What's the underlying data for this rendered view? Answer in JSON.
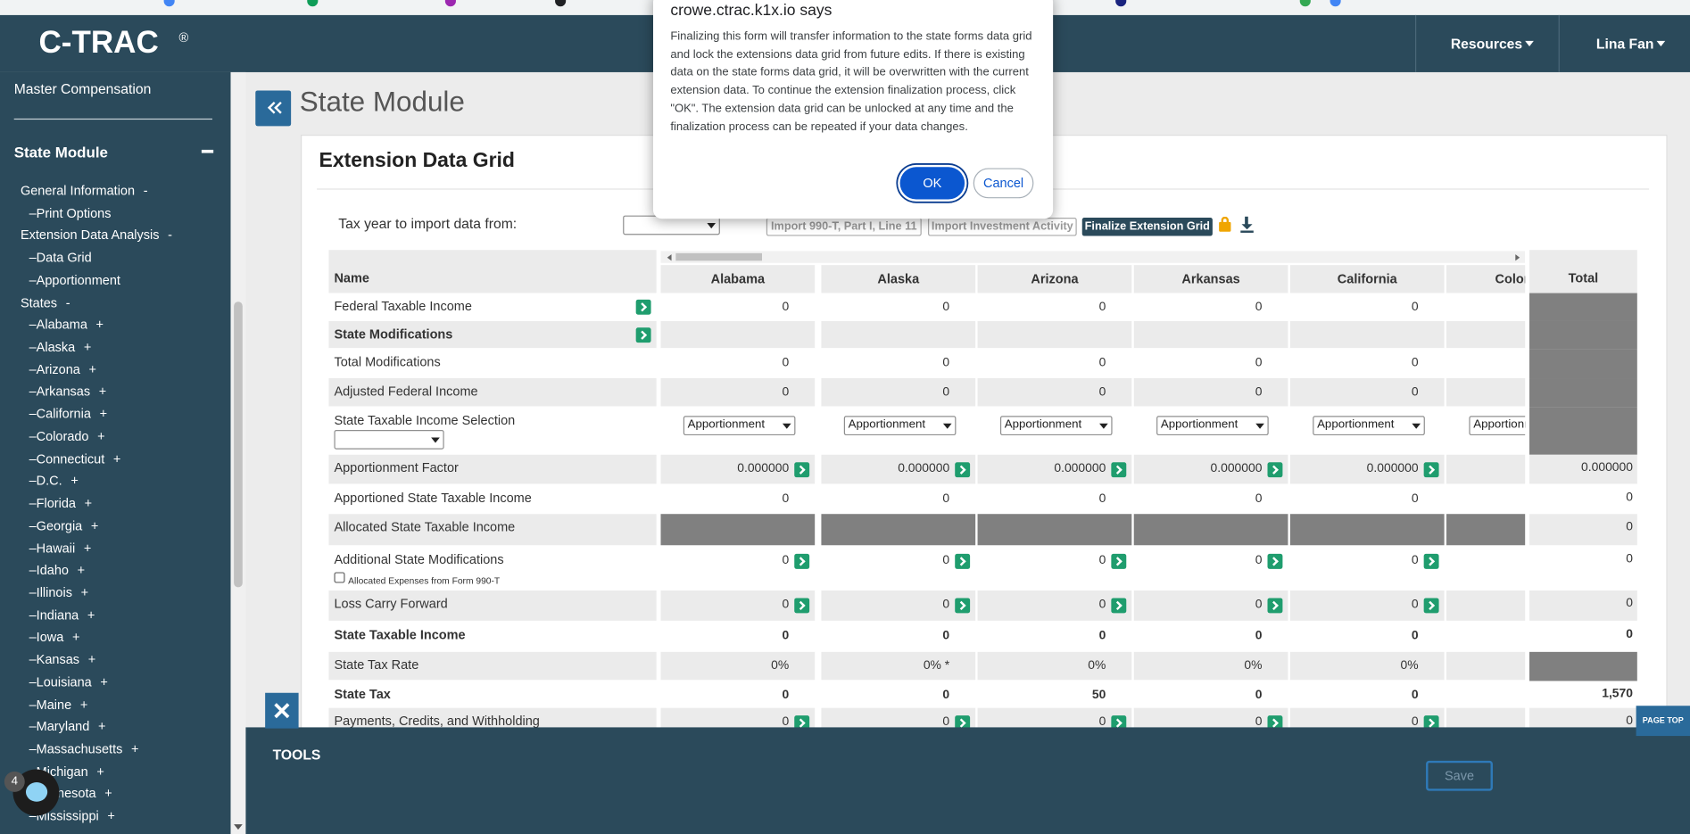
{
  "header": {
    "logo": "C-TRAC",
    "logo_mark": "®",
    "nav": [
      "Resources",
      "Lina Fan"
    ]
  },
  "sidebar": {
    "top": "Master Compensation",
    "section": "State Module",
    "groups": [
      {
        "title": "General Information",
        "toggle": "-",
        "children": [
          {
            "text": "–Print Options"
          }
        ]
      },
      {
        "title": "Extension Data Analysis",
        "toggle": "-",
        "children": [
          {
            "text": "–Data Grid"
          },
          {
            "text": "–Apportionment"
          }
        ]
      },
      {
        "title": "States",
        "toggle": "-",
        "children": [
          {
            "text": "–Alabama",
            "toggle": "+"
          },
          {
            "text": "–Alaska",
            "toggle": "+"
          },
          {
            "text": "–Arizona",
            "toggle": "+"
          },
          {
            "text": "–Arkansas",
            "toggle": "+"
          },
          {
            "text": "–California",
            "toggle": "+"
          },
          {
            "text": "–Colorado",
            "toggle": "+"
          },
          {
            "text": "–Connecticut",
            "toggle": "+"
          },
          {
            "text": "–D.C.",
            "toggle": "+"
          },
          {
            "text": "–Florida",
            "toggle": "+"
          },
          {
            "text": "–Georgia",
            "toggle": "+"
          },
          {
            "text": "–Hawaii",
            "toggle": "+"
          },
          {
            "text": "–Idaho",
            "toggle": "+"
          },
          {
            "text": "–Illinois",
            "toggle": "+"
          },
          {
            "text": "–Indiana",
            "toggle": "+"
          },
          {
            "text": "–Iowa",
            "toggle": "+"
          },
          {
            "text": "–Kansas",
            "toggle": "+"
          },
          {
            "text": "–Louisiana",
            "toggle": "+"
          },
          {
            "text": "–Maine",
            "toggle": "+"
          },
          {
            "text": "–Maryland",
            "toggle": "+"
          },
          {
            "text": "–Massachusetts",
            "toggle": "+"
          },
          {
            "text": "–Michigan",
            "toggle": "+"
          },
          {
            "text": "–Minnesota",
            "toggle": "+"
          },
          {
            "text": "–Mississippi",
            "toggle": "+"
          }
        ]
      }
    ]
  },
  "page": {
    "title": "State Module"
  },
  "card": {
    "title": "Extension Data Grid",
    "import_label": "Tax year to import data from:",
    "buttons": [
      "Import 990-T, Part I, Line 11",
      "Import Investment Activity",
      "Finalize Extension Grid"
    ]
  },
  "table": {
    "name_header": "Name",
    "columns": [
      "Alabama",
      "Alaska",
      "Arizona",
      "Arkansas",
      "California",
      "Colorado"
    ],
    "total_header": "Total",
    "rows": [
      {
        "name": "Federal Taxable Income",
        "action": true,
        "cells": [
          "0",
          "0",
          "0",
          "0",
          "0",
          null
        ],
        "total": null
      },
      {
        "name": "State Modifications",
        "bold": true,
        "action": true,
        "cells": [
          null,
          null,
          null,
          null,
          null,
          null
        ],
        "total": null
      },
      {
        "name": "Total Modifications",
        "cells": [
          "0",
          "0",
          "0",
          "0",
          "0",
          null
        ],
        "total": null
      },
      {
        "name": "Adjusted Federal Income",
        "cells": [
          "0",
          "0",
          "0",
          "0",
          "0",
          null
        ],
        "total": null
      },
      {
        "name": "State Taxable Income Selection",
        "name_select": true,
        "cell_style": "select",
        "cells": [
          "Apportionment",
          "Apportionment",
          "Apportionment",
          "Apportionment",
          "Apportionment",
          "Apportionment"
        ],
        "total": null
      },
      {
        "name": "Apportionment Factor",
        "cell_buttons": true,
        "cells": [
          "0.000000",
          "0.000000",
          "0.000000",
          "0.000000",
          "0.000000",
          null
        ],
        "total": "0.000000"
      },
      {
        "name": "Apportioned State Taxable Income",
        "cells": [
          "0",
          "0",
          "0",
          "0",
          "0",
          null
        ],
        "total": "0"
      },
      {
        "name": "Allocated State Taxable Income",
        "cell_style": "shaded",
        "cells": [
          null,
          null,
          null,
          null,
          null,
          null
        ],
        "total": "0"
      },
      {
        "name": "Additional State Modifications",
        "note": "Allocated Expenses from Form 990-T",
        "cell_buttons": true,
        "cells": [
          "0",
          "0",
          "0",
          "0",
          "0",
          null
        ],
        "total": "0"
      },
      {
        "name": "Loss Carry Forward",
        "cell_buttons": true,
        "cells": [
          "0",
          "0",
          "0",
          "0",
          "0",
          null
        ],
        "total": "0"
      },
      {
        "name": "State Taxable Income",
        "bold": true,
        "cells": [
          "0",
          "0",
          "0",
          "0",
          "0",
          null
        ],
        "total": "0"
      },
      {
        "name": "State Tax Rate",
        "cells": [
          "0%",
          "0% *",
          "0%",
          "0%",
          "0%",
          null
        ],
        "total": null
      },
      {
        "name": "State Tax",
        "bold": true,
        "cells": [
          "0",
          "0",
          "50",
          "0",
          "0",
          null
        ],
        "total": "1,570"
      },
      {
        "name": "Payments, Credits, and Withholding",
        "cell_buttons": true,
        "cells": [
          "0",
          "0",
          "0",
          "0",
          "0",
          null
        ],
        "total": "0"
      }
    ]
  },
  "dialog": {
    "title": "crowe.ctrac.k1x.io says",
    "message": "Finalizing this form will transfer information to the state forms data grid and lock the extensions data grid from future edits. If there is existing data on the state forms data grid, it will be overwritten with the current extension data. To continue the extension finalization process, click \"OK\". The extension data grid can be unlocked at any time and the finalization process can be repeated if your data changes.",
    "buttons": [
      "OK",
      "Cancel"
    ]
  },
  "tools": {
    "title": "TOOLS",
    "save": "Save"
  },
  "page_top": "PAGE TOP",
  "badge": "4"
}
